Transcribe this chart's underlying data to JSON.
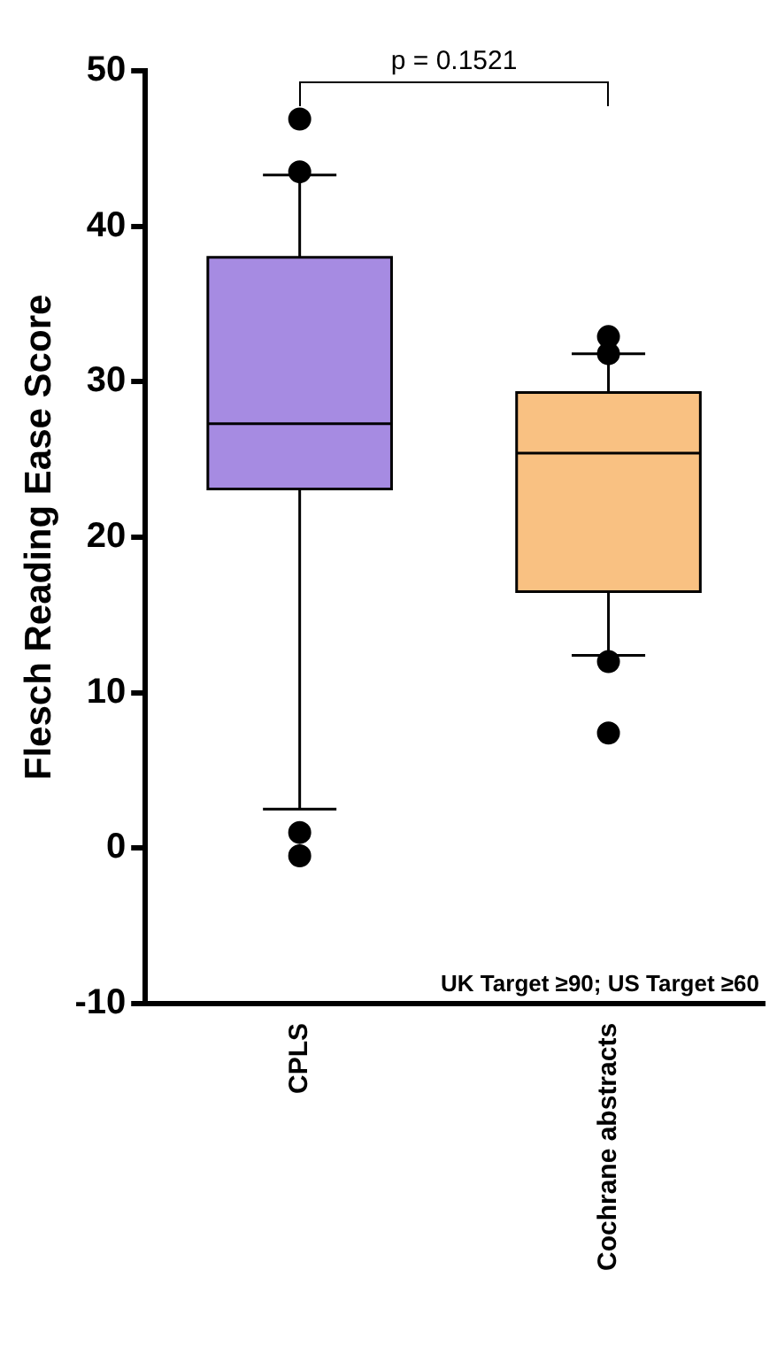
{
  "chart_data": {
    "type": "box",
    "ylabel": "Flesch Reading Ease Score",
    "categories": [
      "CPLS",
      "Cochrane abstracts"
    ],
    "colors": [
      "#a68be2",
      "#f9c182"
    ],
    "boxes": [
      {
        "low": 2.5,
        "q1": 23.1,
        "median": 27.3,
        "q3": 38,
        "high": 43.3,
        "outliers": [
          46.9,
          43.5,
          1,
          -0.5
        ]
      },
      {
        "low": 12.4,
        "q1": 16.5,
        "median": 25.4,
        "q3": 29.3,
        "high": 31.8,
        "outliers": [
          31.8,
          32.9,
          12,
          7.4
        ]
      }
    ],
    "ylim": [
      -10,
      50
    ],
    "yticks": [
      -10,
      0,
      10,
      20,
      30,
      40,
      50
    ],
    "grid": false,
    "legend": false,
    "annotations": [
      "p = 0.1521",
      "UK Target ≥90; US Target ≥60"
    ]
  }
}
